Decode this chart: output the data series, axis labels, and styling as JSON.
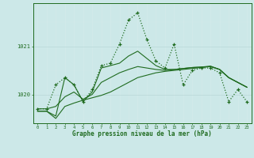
{
  "x": [
    0,
    1,
    2,
    3,
    4,
    5,
    6,
    7,
    8,
    9,
    10,
    11,
    12,
    13,
    14,
    15,
    16,
    17,
    18,
    19,
    20,
    21,
    22,
    23
  ],
  "y_dotted": [
    1019.7,
    1019.7,
    1020.2,
    1020.35,
    1020.2,
    1019.85,
    1020.1,
    1020.6,
    1020.65,
    1021.05,
    1021.55,
    1021.7,
    1021.15,
    1020.7,
    1020.55,
    1021.05,
    1020.2,
    1020.5,
    1020.55,
    1020.55,
    1020.45,
    1019.85,
    1020.1,
    1019.85
  ],
  "y_solid1": [
    1019.65,
    1019.65,
    1019.5,
    1019.75,
    1019.82,
    1019.88,
    1019.93,
    1019.98,
    1020.05,
    1020.15,
    1020.25,
    1020.35,
    1020.4,
    1020.45,
    1020.48,
    1020.5,
    1020.52,
    1020.54,
    1020.56,
    1020.58,
    1020.52,
    1020.35,
    1020.25,
    1020.15
  ],
  "y_solid2": [
    1019.7,
    1019.7,
    1019.75,
    1019.95,
    1020.05,
    1019.9,
    1020.0,
    1020.25,
    1020.35,
    1020.45,
    1020.52,
    1020.58,
    1020.55,
    1020.52,
    1020.5,
    1020.52,
    1020.54,
    1020.56,
    1020.57,
    1020.58,
    1020.52,
    1020.35,
    1020.25,
    1020.15
  ],
  "y_solid3": [
    1019.65,
    1019.65,
    1019.55,
    1020.35,
    1020.2,
    1019.85,
    1020.05,
    1020.55,
    1020.6,
    1020.65,
    1020.8,
    1020.9,
    1020.75,
    1020.6,
    1020.52,
    1020.52,
    1020.54,
    1020.56,
    1020.57,
    1020.59,
    1020.52,
    1020.35,
    1020.25,
    1020.15
  ],
  "color": "#1f6b1f",
  "bg_color": "#cce8e8",
  "grid_major_color": "#b8d8d8",
  "grid_minor_color": "#d4eaea",
  "xlabel": "Graphe pression niveau de la mer (hPa)",
  "yticks": [
    1020,
    1021
  ],
  "ylim": [
    1019.4,
    1021.9
  ],
  "xlim": [
    -0.5,
    23.5
  ]
}
